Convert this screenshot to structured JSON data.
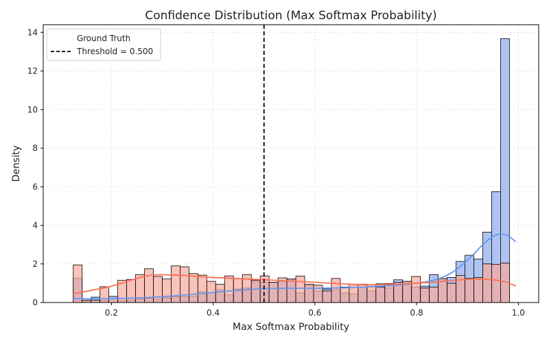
{
  "chart_data": {
    "type": "histogram",
    "title": "Confidence Distribution (Max Softmax Probability)",
    "xlabel": "Max Softmax Probability",
    "ylabel": "Density",
    "xlim": [
      0.066,
      1.04
    ],
    "ylim": [
      0,
      14.4
    ],
    "x_ticks": [
      0.2,
      0.4,
      0.6,
      0.8,
      1.0
    ],
    "x_tick_labels": [
      "0.2",
      "0.4",
      "0.6",
      "0.8",
      "1.0"
    ],
    "y_ticks": [
      0,
      2,
      4,
      6,
      8,
      10,
      12,
      14
    ],
    "y_tick_labels": [
      "0",
      "2",
      "4",
      "6",
      "8",
      "10",
      "12",
      "14"
    ],
    "grid": true,
    "bin_start": 0.125,
    "bin_width": 0.0175,
    "legend": {
      "placement": "top-left",
      "title": "Ground Truth",
      "entries": [
        {
          "label": "Threshold = 0.500",
          "style": "dashed"
        }
      ]
    },
    "threshold": {
      "x": 0.5,
      "label": "Threshold = 0.500"
    },
    "series": [
      {
        "color": "#6495ed",
        "fill": "#aec3f2",
        "values": [
          1.25,
          0.08,
          0.28,
          0.1,
          0.32,
          0.1,
          0.12,
          0.18,
          0.22,
          0.18,
          0.24,
          0.3,
          0.3,
          0.33,
          0.55,
          0.5,
          0.65,
          0.4,
          0.7,
          0.75,
          1.1,
          1.05,
          1.05,
          1.1,
          1.2,
          0.5,
          0.9,
          0.6,
          0.7,
          0.65,
          0.5,
          0.45,
          0.8,
          0.6,
          0.97,
          0.75,
          1.18,
          1.08,
          0.8,
          0.85,
          1.45,
          1.2,
          1.3,
          2.13,
          2.45,
          2.25,
          3.65,
          5.75,
          13.68
        ],
        "kde_x": [
          0.125,
          0.2,
          0.3,
          0.4,
          0.5,
          0.6,
          0.7,
          0.8,
          0.85,
          0.88,
          0.91,
          0.93,
          0.95,
          0.965,
          0.98,
          0.995
        ],
        "kde_y": [
          0.2,
          0.2,
          0.3,
          0.52,
          0.72,
          0.74,
          0.8,
          1.0,
          1.3,
          1.75,
          2.45,
          3.0,
          3.42,
          3.55,
          3.45,
          3.15
        ]
      },
      {
        "color": "#fa6f55",
        "fill": "#f8ab9c",
        "values": [
          1.95,
          0.12,
          0.12,
          0.82,
          0.2,
          1.15,
          1.2,
          1.45,
          1.75,
          1.35,
          1.22,
          1.9,
          1.85,
          1.5,
          1.42,
          1.1,
          0.95,
          1.38,
          1.25,
          1.45,
          1.15,
          1.38,
          1.05,
          1.28,
          1.22,
          1.37,
          0.95,
          0.9,
          0.6,
          1.25,
          0.8,
          0.95,
          0.95,
          0.92,
          0.8,
          0.98,
          1.05,
          1.1,
          1.35,
          0.75,
          0.8,
          1.25,
          1.0,
          1.4,
          1.25,
          1.3,
          2.0,
          1.98,
          2.05
        ],
        "kde_x": [
          0.125,
          0.2,
          0.27,
          0.33,
          0.4,
          0.5,
          0.6,
          0.7,
          0.8,
          0.9,
          0.94,
          0.97,
          0.995
        ],
        "kde_y": [
          0.45,
          0.85,
          1.38,
          1.42,
          1.3,
          1.18,
          1.05,
          0.92,
          1.0,
          1.2,
          1.2,
          1.1,
          0.85
        ]
      }
    ]
  }
}
